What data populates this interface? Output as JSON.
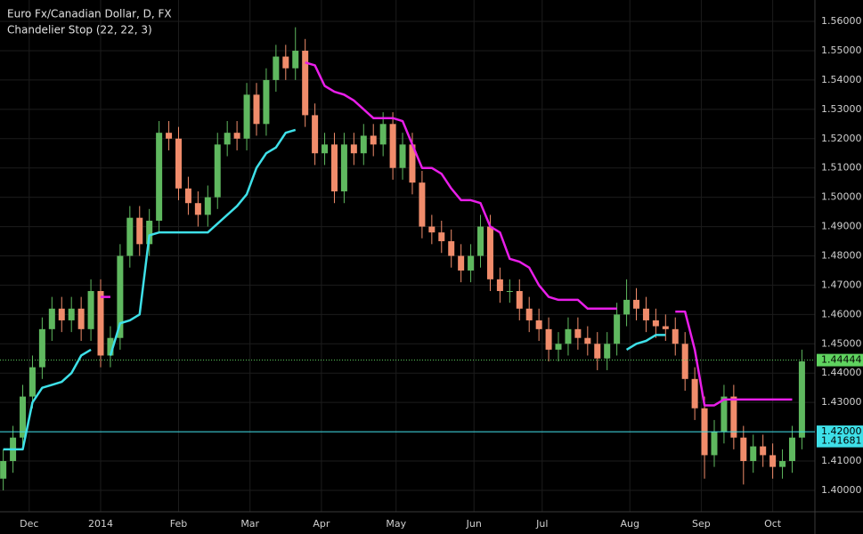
{
  "chart_data": {
    "type": "candlestick",
    "title": "Euro Fx/Canadian Dollar, D, FX",
    "subtitle": "Chandelier Stop (22, 22, 3)",
    "up_color": "#5fb85f",
    "down_color": "#f08c6b",
    "grid": true,
    "xlim": [
      -1,
      250
    ],
    "ylim": [
      1.3927,
      1.5673
    ],
    "xticks": [
      {
        "value": 8,
        "label": "Dec"
      },
      {
        "value": 30,
        "label": "2014"
      },
      {
        "value": 54,
        "label": "Feb"
      },
      {
        "value": 76,
        "label": "Mar"
      },
      {
        "value": 98,
        "label": "Apr"
      },
      {
        "value": 121,
        "label": "May"
      },
      {
        "value": 145,
        "label": "Jun"
      },
      {
        "value": 166,
        "label": "Jul"
      },
      {
        "value": 193,
        "label": "Aug"
      },
      {
        "value": 215,
        "label": "Sep"
      },
      {
        "value": 237,
        "label": "Oct"
      }
    ],
    "yticks": [
      {
        "value": 1.4,
        "label": "1.40000"
      },
      {
        "value": 1.41,
        "label": "1.41000"
      },
      {
        "value": 1.42,
        "label": "1.42000"
      },
      {
        "value": 1.43,
        "label": "1.43000"
      },
      {
        "value": 1.44,
        "label": "1.44000"
      },
      {
        "value": 1.45,
        "label": "1.45000"
      },
      {
        "value": 1.46,
        "label": "1.46000"
      },
      {
        "value": 1.47,
        "label": "1.47000"
      },
      {
        "value": 1.48,
        "label": "1.48000"
      },
      {
        "value": 1.49,
        "label": "1.49000"
      },
      {
        "value": 1.5,
        "label": "1.50000"
      },
      {
        "value": 1.51,
        "label": "1.51000"
      },
      {
        "value": 1.52,
        "label": "1.52000"
      },
      {
        "value": 1.53,
        "label": "1.53000"
      },
      {
        "value": 1.54,
        "label": "1.54000"
      },
      {
        "value": 1.55,
        "label": "1.55000"
      },
      {
        "value": 1.56,
        "label": "1.56000"
      }
    ],
    "x": [
      0,
      3,
      6,
      9,
      12,
      15,
      18,
      21,
      24,
      27,
      30,
      33,
      36,
      39,
      42,
      45,
      48,
      51,
      54,
      57,
      60,
      63,
      66,
      69,
      72,
      75,
      78,
      81,
      84,
      87,
      90,
      93,
      96,
      99,
      102,
      105,
      108,
      111,
      114,
      117,
      120,
      123,
      126,
      129,
      132,
      135,
      138,
      141,
      144,
      147,
      150,
      153,
      156,
      159,
      162,
      165,
      168,
      171,
      174,
      177,
      180,
      183,
      186,
      189,
      192,
      195,
      198,
      201,
      204,
      207,
      210,
      213,
      216,
      219,
      222,
      225,
      228,
      231,
      234,
      237,
      240,
      243,
      246
    ],
    "open": [
      1.404,
      1.41,
      1.418,
      1.432,
      1.442,
      1.455,
      1.462,
      1.458,
      1.462,
      1.455,
      1.468,
      1.446,
      1.452,
      1.48,
      1.493,
      1.484,
      1.492,
      1.522,
      1.52,
      1.503,
      1.498,
      1.494,
      1.5,
      1.518,
      1.522,
      1.52,
      1.535,
      1.525,
      1.54,
      1.548,
      1.544,
      1.55,
      1.528,
      1.515,
      1.518,
      1.502,
      1.518,
      1.515,
      1.521,
      1.518,
      1.525,
      1.51,
      1.518,
      1.505,
      1.49,
      1.488,
      1.485,
      1.48,
      1.475,
      1.48,
      1.49,
      1.472,
      1.468,
      1.468,
      1.462,
      1.458,
      1.455,
      1.448,
      1.45,
      1.455,
      1.452,
      1.45,
      1.445,
      1.45,
      1.46,
      1.465,
      1.462,
      1.458,
      1.456,
      1.455,
      1.45,
      1.438,
      1.428,
      1.412,
      1.42,
      1.432,
      1.418,
      1.41,
      1.415,
      1.412,
      1.408,
      1.41,
      1.418
    ],
    "high": [
      1.414,
      1.422,
      1.436,
      1.446,
      1.459,
      1.466,
      1.466,
      1.466,
      1.466,
      1.472,
      1.472,
      1.456,
      1.484,
      1.497,
      1.497,
      1.496,
      1.526,
      1.526,
      1.524,
      1.507,
      1.502,
      1.504,
      1.522,
      1.526,
      1.526,
      1.539,
      1.539,
      1.544,
      1.552,
      1.552,
      1.558,
      1.554,
      1.532,
      1.522,
      1.522,
      1.522,
      1.522,
      1.525,
      1.525,
      1.529,
      1.529,
      1.522,
      1.522,
      1.509,
      1.494,
      1.492,
      1.489,
      1.484,
      1.484,
      1.494,
      1.494,
      1.476,
      1.472,
      1.472,
      1.466,
      1.462,
      1.459,
      1.454,
      1.459,
      1.459,
      1.456,
      1.454,
      1.454,
      1.464,
      1.472,
      1.469,
      1.466,
      1.462,
      1.46,
      1.459,
      1.454,
      1.442,
      1.432,
      1.424,
      1.436,
      1.436,
      1.422,
      1.419,
      1.419,
      1.416,
      1.414,
      1.422,
      1.448
    ],
    "low": [
      1.4,
      1.406,
      1.414,
      1.428,
      1.438,
      1.451,
      1.454,
      1.454,
      1.451,
      1.451,
      1.442,
      1.442,
      1.448,
      1.476,
      1.48,
      1.48,
      1.488,
      1.516,
      1.499,
      1.494,
      1.49,
      1.49,
      1.496,
      1.514,
      1.516,
      1.516,
      1.521,
      1.521,
      1.536,
      1.54,
      1.54,
      1.524,
      1.511,
      1.511,
      1.498,
      1.498,
      1.511,
      1.511,
      1.514,
      1.514,
      1.506,
      1.506,
      1.501,
      1.486,
      1.484,
      1.481,
      1.476,
      1.471,
      1.471,
      1.476,
      1.468,
      1.464,
      1.464,
      1.458,
      1.454,
      1.451,
      1.444,
      1.444,
      1.446,
      1.448,
      1.446,
      1.441,
      1.441,
      1.446,
      1.456,
      1.458,
      1.454,
      1.452,
      1.451,
      1.446,
      1.434,
      1.424,
      1.404,
      1.408,
      1.416,
      1.414,
      1.402,
      1.406,
      1.408,
      1.404,
      1.404,
      1.406,
      1.414
    ],
    "close": [
      1.41,
      1.418,
      1.432,
      1.442,
      1.455,
      1.462,
      1.458,
      1.462,
      1.455,
      1.468,
      1.446,
      1.452,
      1.48,
      1.493,
      1.484,
      1.492,
      1.522,
      1.52,
      1.503,
      1.498,
      1.494,
      1.5,
      1.518,
      1.522,
      1.52,
      1.535,
      1.525,
      1.54,
      1.548,
      1.544,
      1.55,
      1.528,
      1.515,
      1.518,
      1.502,
      1.518,
      1.515,
      1.521,
      1.518,
      1.525,
      1.51,
      1.518,
      1.505,
      1.49,
      1.488,
      1.485,
      1.48,
      1.475,
      1.48,
      1.49,
      1.472,
      1.468,
      1.468,
      1.462,
      1.458,
      1.455,
      1.448,
      1.45,
      1.455,
      1.452,
      1.45,
      1.445,
      1.45,
      1.46,
      1.465,
      1.462,
      1.458,
      1.456,
      1.455,
      1.45,
      1.438,
      1.428,
      1.412,
      1.42,
      1.432,
      1.418,
      1.41,
      1.415,
      1.412,
      1.408,
      1.41,
      1.418,
      1.444
    ],
    "series": [
      {
        "color": "#3ee0e8",
        "values": [
          1.414,
          1.414,
          1.414,
          1.43,
          1.435,
          1.436,
          1.437,
          1.44,
          1.446,
          1.448,
          null,
          1.446,
          1.457,
          1.458,
          1.46,
          1.487,
          1.488,
          1.488,
          1.488,
          1.488,
          1.488,
          1.488,
          1.491,
          1.494,
          1.497,
          1.501,
          1.51,
          1.515,
          1.517,
          1.522,
          1.523,
          null,
          null,
          null,
          null,
          null,
          null,
          null,
          null,
          null,
          null,
          null,
          null,
          null,
          null,
          null,
          null,
          null,
          null,
          null,
          null,
          null,
          null,
          null,
          null,
          null,
          null,
          null,
          null,
          null,
          null,
          null,
          null,
          null,
          1.448,
          1.45,
          1.451,
          1.453,
          1.453,
          null,
          null,
          null,
          null,
          null,
          null,
          null,
          null,
          null,
          null,
          null,
          null,
          null,
          1.417
        ]
      },
      {
        "color": "#e81ee8",
        "values": [
          null,
          null,
          null,
          null,
          null,
          null,
          null,
          null,
          null,
          null,
          1.466,
          1.466,
          null,
          null,
          null,
          null,
          null,
          null,
          null,
          null,
          null,
          null,
          null,
          null,
          null,
          null,
          null,
          null,
          null,
          null,
          null,
          1.546,
          1.545,
          1.538,
          1.536,
          1.535,
          1.533,
          1.53,
          1.527,
          1.527,
          1.527,
          1.526,
          1.518,
          1.51,
          1.51,
          1.508,
          1.503,
          1.499,
          1.499,
          1.498,
          1.49,
          1.488,
          1.479,
          1.478,
          1.476,
          1.47,
          1.466,
          1.465,
          1.465,
          1.465,
          1.462,
          1.462,
          1.462,
          1.462,
          null,
          null,
          null,
          null,
          null,
          1.461,
          1.461,
          1.448,
          1.429,
          1.429,
          1.431,
          1.431,
          1.431,
          1.431,
          1.431,
          1.431,
          1.431,
          1.431,
          null
        ]
      }
    ],
    "price_markers": [
      {
        "value": 1.44444,
        "label": "1.44444",
        "color": "#5fd35f",
        "line": "dotted"
      },
      {
        "value": 1.42,
        "label": "1.42000",
        "color": "#3ee0e8",
        "line": "solid"
      },
      {
        "value": 1.41681,
        "label": "1.41681",
        "color": "#3ee0e8",
        "line": "none"
      }
    ]
  }
}
